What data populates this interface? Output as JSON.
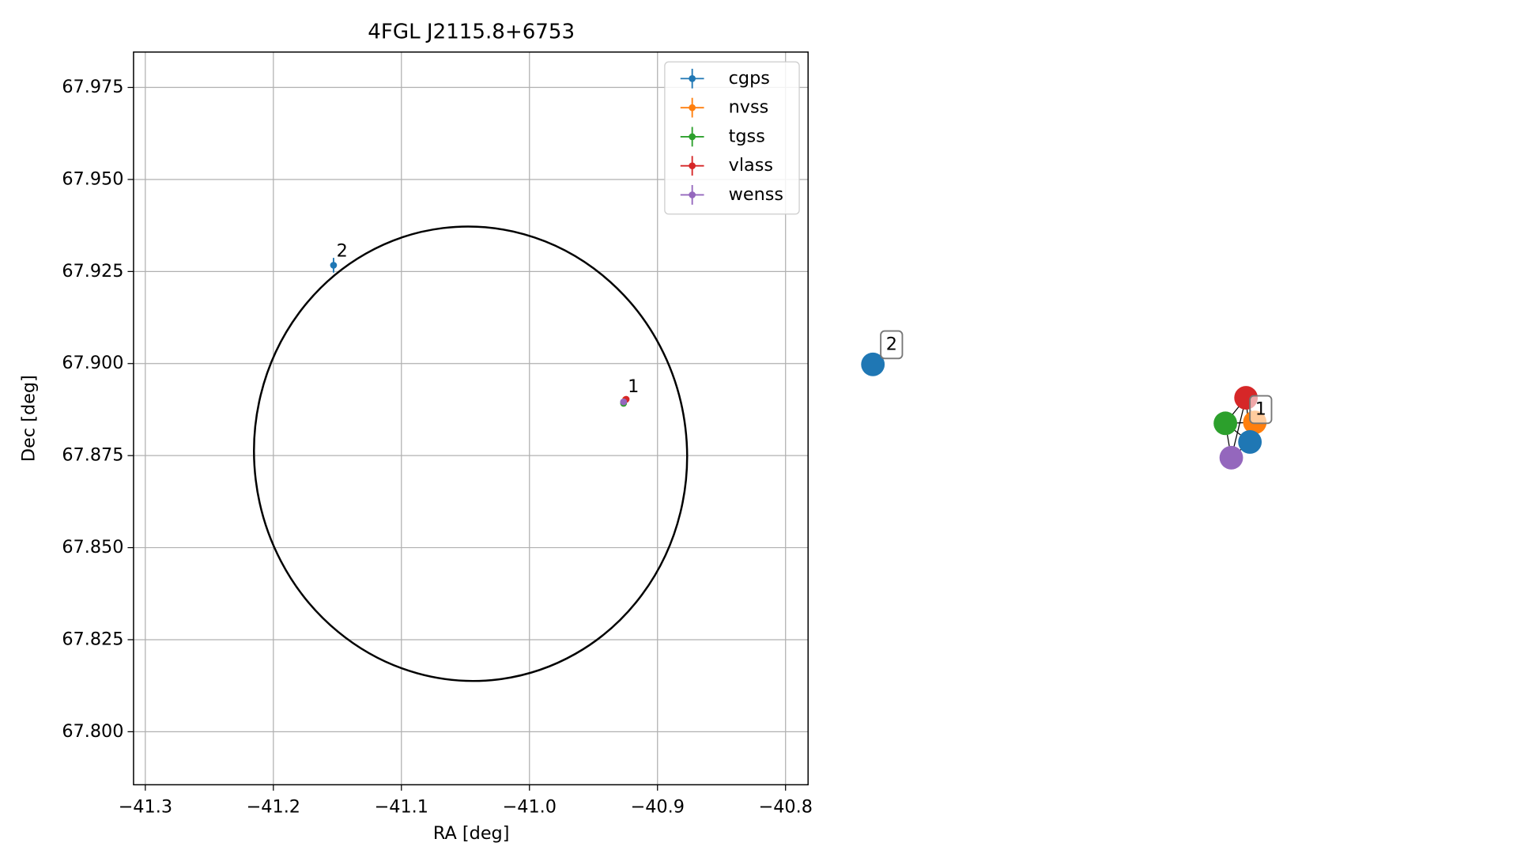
{
  "chart_data": {
    "type": "scatter",
    "title": "4FGL J2115.8+6753",
    "x_label": "RA [deg]",
    "y_label": "Dec [deg]",
    "xlim": [
      -41.3092,
      -40.7824
    ],
    "ylim": [
      67.7856,
      67.9846
    ],
    "xticks": [
      {
        "value": -41.3,
        "label": "−41.3"
      },
      {
        "value": -41.2,
        "label": "−41.2"
      },
      {
        "value": -41.1,
        "label": "−41.1"
      },
      {
        "value": -41.0,
        "label": "−41.0"
      },
      {
        "value": -40.9,
        "label": "−40.9"
      },
      {
        "value": -40.8,
        "label": "−40.8"
      }
    ],
    "yticks": [
      {
        "value": 67.8,
        "label": "67.800"
      },
      67.825,
      {
        "value": 67.85,
        "label": "67.850"
      },
      67.875,
      {
        "value": 67.9,
        "label": "67.900"
      },
      67.925,
      {
        "value": 67.95,
        "label": "67.950"
      },
      67.975
    ],
    "grid": true,
    "legend": "upper right",
    "series": [
      {
        "name": "cgps",
        "color": "#1f77b4",
        "x": [
          -41.153,
          -40.9265
        ],
        "values": [
          67.9267,
          67.8895
        ],
        "xerr": [
          0.0008,
          0.0005
        ],
        "yerr": [
          0.002,
          0.0005
        ]
      },
      {
        "name": "nvss",
        "color": "#ff7f0e",
        "x": [
          -40.925
        ],
        "values": [
          67.8902
        ],
        "xerr": [
          0.0005
        ],
        "yerr": [
          0.0005
        ]
      },
      {
        "name": "tgss",
        "color": "#2ca02c",
        "x": [
          -40.9265
        ],
        "values": [
          67.8892
        ],
        "xerr": [
          0.0005
        ],
        "yerr": [
          0.0005
        ]
      },
      {
        "name": "vlass",
        "color": "#d62728",
        "x": [
          -40.9245
        ],
        "values": [
          67.8903
        ],
        "xerr": [
          0.0003
        ],
        "yerr": [
          0.0003
        ]
      },
      {
        "name": "wenss",
        "color": "#9467bd",
        "x": [
          -40.9265
        ],
        "values": [
          67.8896
        ],
        "xerr": [
          0.0005
        ],
        "yerr": [
          0.0005
        ]
      }
    ],
    "annotations": [
      {
        "text": "2",
        "x": -41.153,
        "y": 67.9267
      },
      {
        "text": "1",
        "x": -40.9255,
        "y": 67.8899
      }
    ],
    "ellipse": {
      "x": -41.046,
      "y": 67.8755,
      "width": 0.338,
      "height": 0.1235,
      "angle": -7
    }
  }
}
